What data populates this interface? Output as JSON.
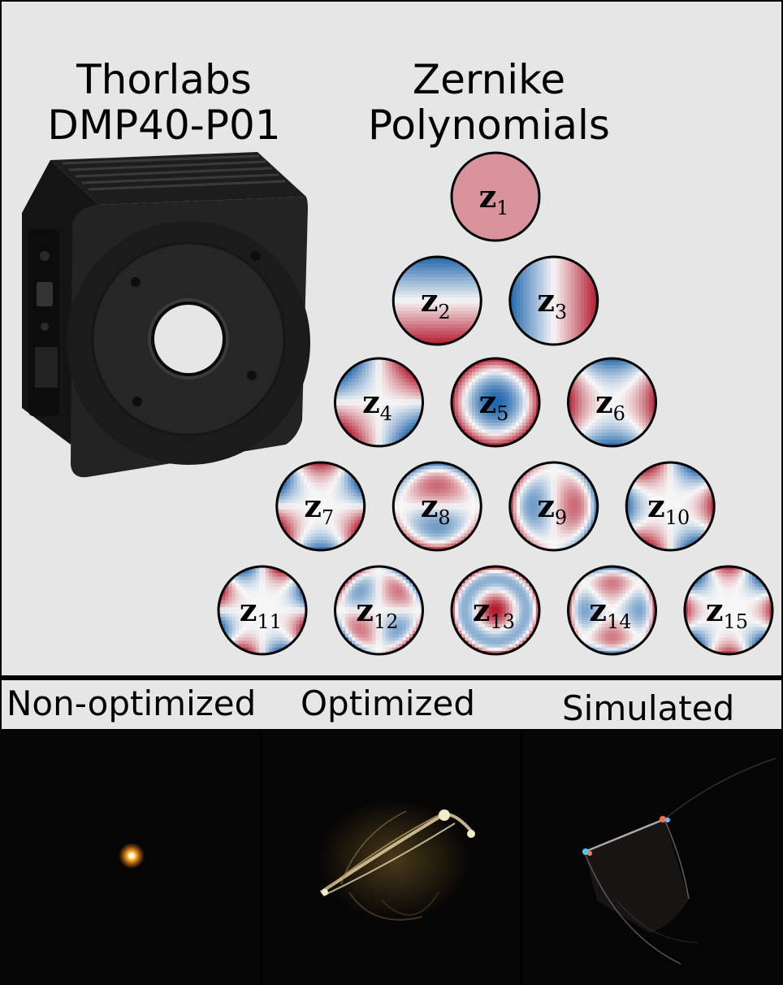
{
  "device": {
    "title_line1": "Thorlabs",
    "title_line2": "DMP40-P01",
    "photo_icon": "deformable-mirror-photo"
  },
  "zernike": {
    "title_line1": "Zernike",
    "title_line2": "Polynomials",
    "symbol": "z",
    "modes": [
      {
        "index": "1",
        "pattern": "piston"
      },
      {
        "index": "2",
        "pattern": "tilt-y"
      },
      {
        "index": "3",
        "pattern": "tilt-x"
      },
      {
        "index": "4",
        "pattern": "astig-oblique"
      },
      {
        "index": "5",
        "pattern": "defocus"
      },
      {
        "index": "6",
        "pattern": "astig-vertical"
      },
      {
        "index": "7",
        "pattern": "trefoil-vertical"
      },
      {
        "index": "8",
        "pattern": "coma-vertical"
      },
      {
        "index": "9",
        "pattern": "coma-horizontal"
      },
      {
        "index": "10",
        "pattern": "trefoil-oblique"
      },
      {
        "index": "11",
        "pattern": "quadrafoil-oblique"
      },
      {
        "index": "12",
        "pattern": "secondary-astig-oblique"
      },
      {
        "index": "13",
        "pattern": "spherical"
      },
      {
        "index": "14",
        "pattern": "secondary-astig-vertical"
      },
      {
        "index": "15",
        "pattern": "quadrafoil-vertical"
      }
    ],
    "colors": {
      "positive": "#b2182b",
      "negative": "#2166ac",
      "neutral": "#f7f7f7"
    }
  },
  "renders": {
    "labels": [
      "Non-optimized",
      "Optimized",
      "Simulated"
    ]
  }
}
